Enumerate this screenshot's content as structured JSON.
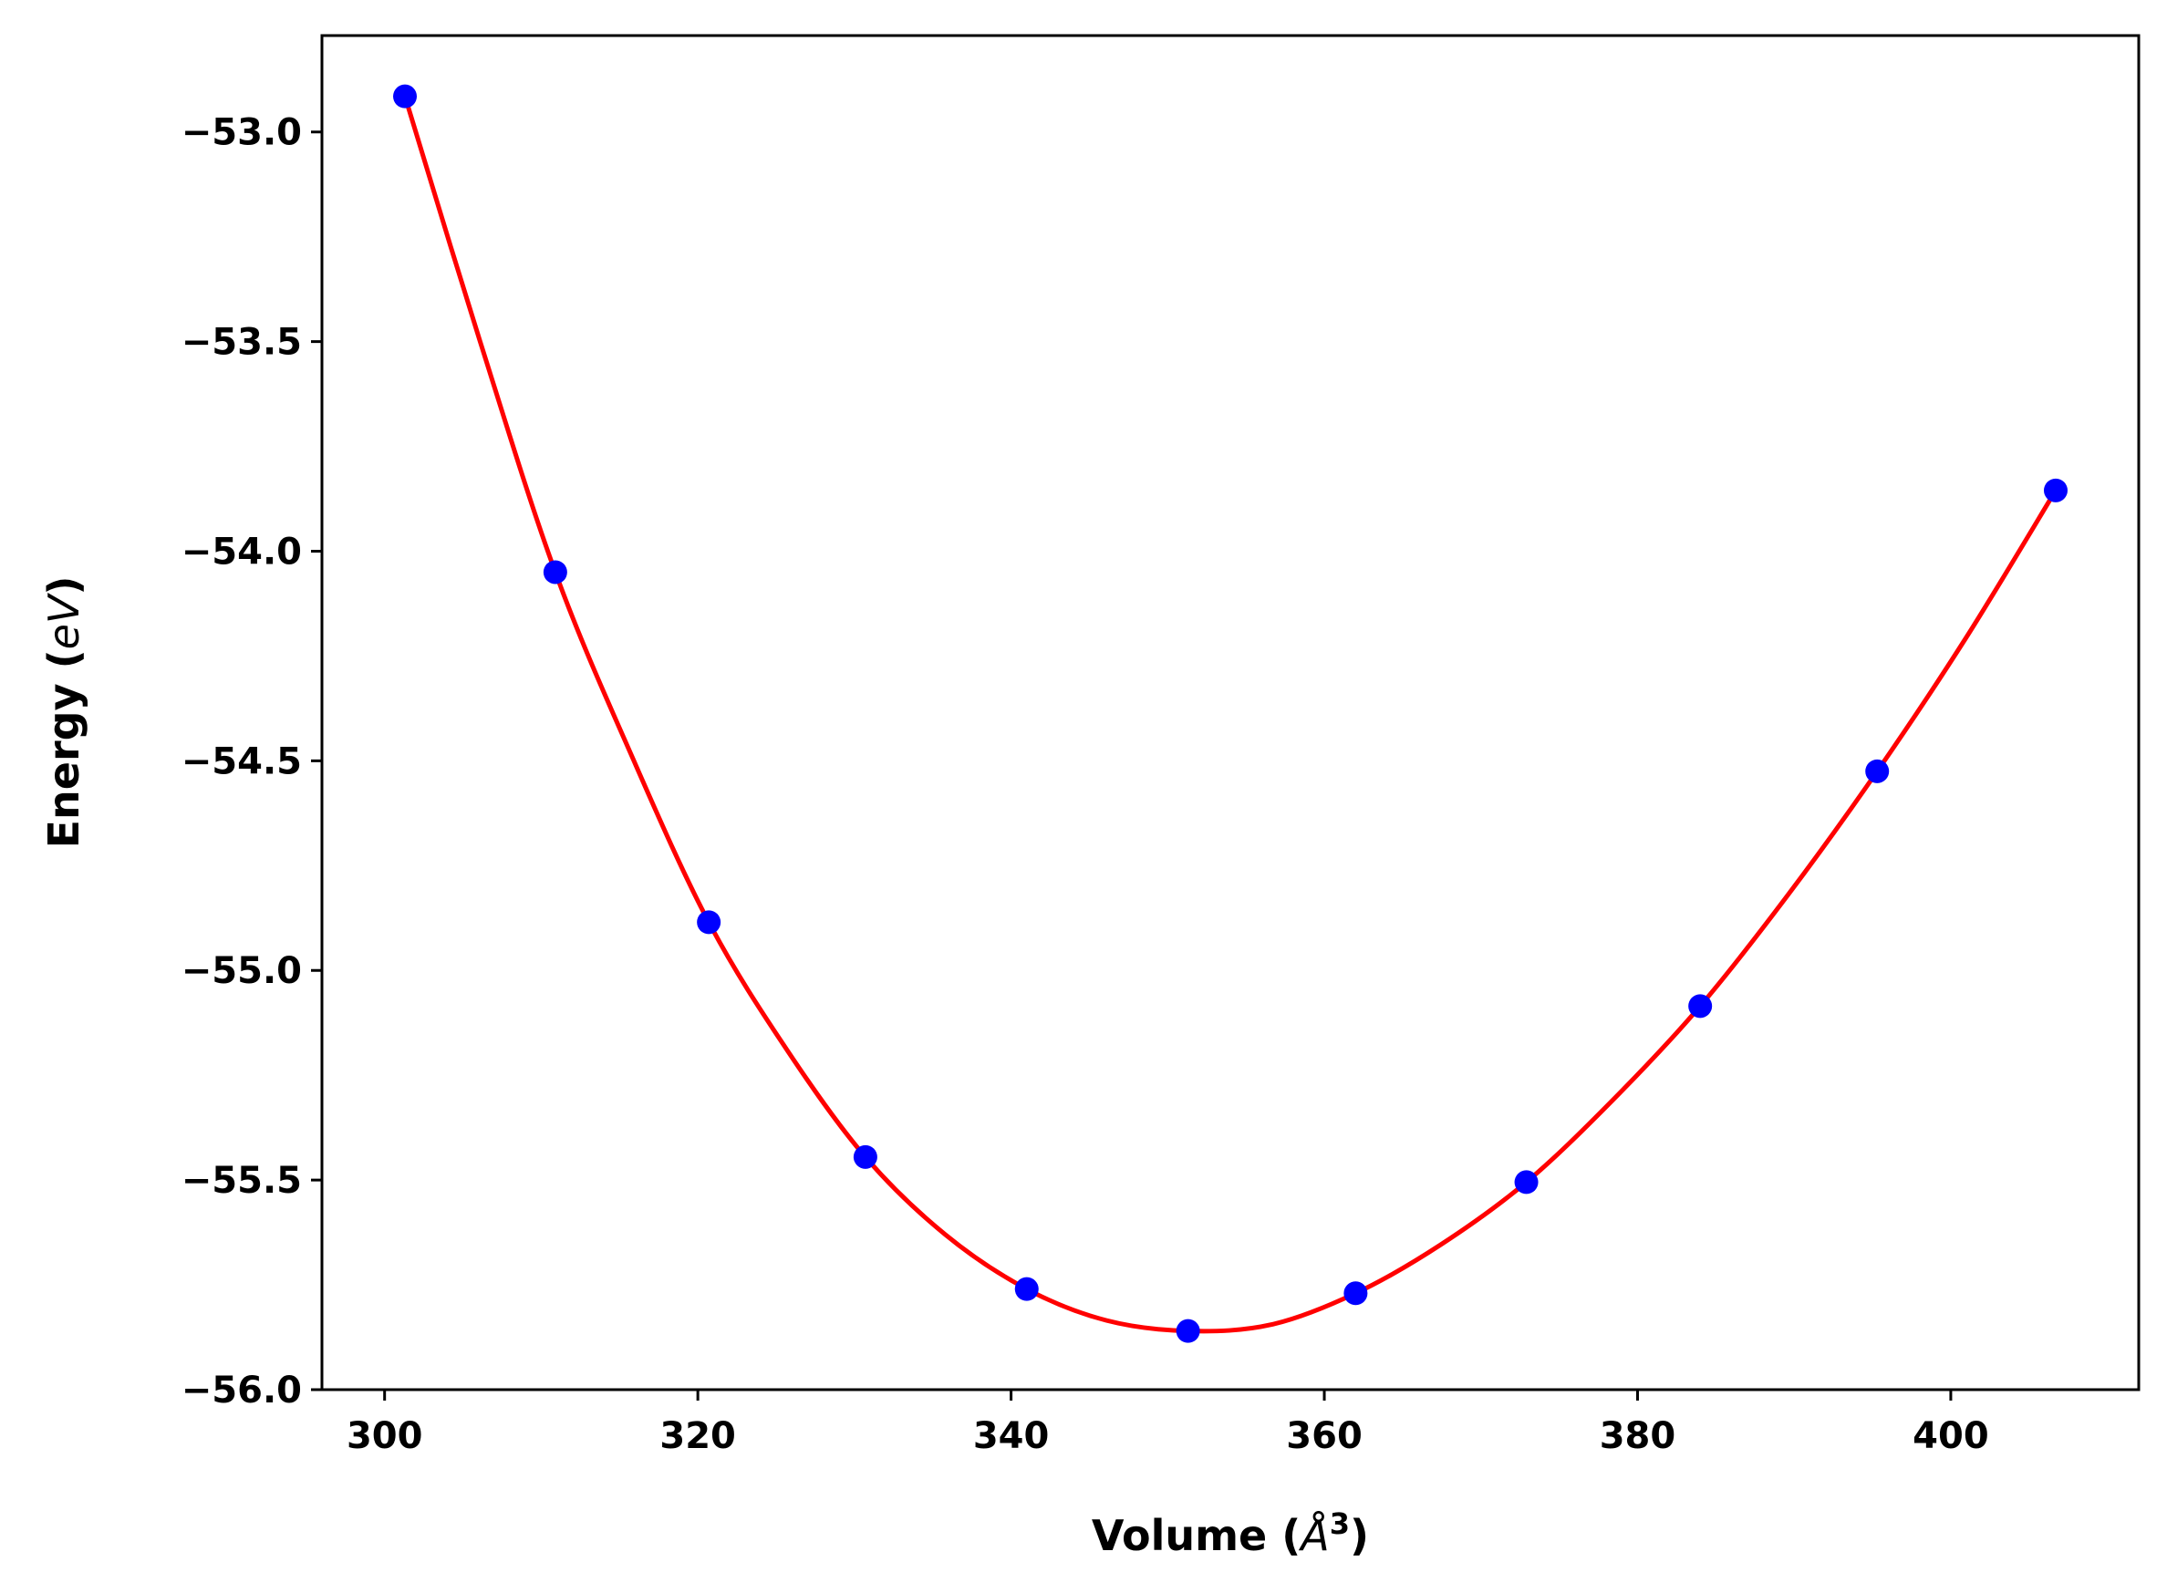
{
  "chart_data": {
    "type": "scatter",
    "title": "",
    "xlabel": {
      "text": "Volume (",
      "math": "Å",
      "sup": "3",
      "close": ")"
    },
    "ylabel": {
      "text": "Energy (",
      "math": "eV",
      "close": ")"
    },
    "xlim": [
      296,
      412
    ],
    "ylim": [
      -56.0,
      -52.77
    ],
    "xticks": [
      300,
      320,
      340,
      360,
      380,
      400
    ],
    "xtick_labels": [
      "300",
      "320",
      "340",
      "360",
      "380",
      "400"
    ],
    "yticks": [
      -56.0,
      -55.5,
      -55.0,
      -54.5,
      -54.0,
      -53.5,
      -53.0
    ],
    "ytick_labels": [
      "−56.0",
      "−55.5",
      "−55.0",
      "−54.5",
      "−54.0",
      "−53.5",
      "−53.0"
    ],
    "grid": false,
    "series": [
      {
        "kind": "points",
        "color": "#0000ff",
        "x": [
          301.3,
          310.9,
          320.7,
          330.7,
          341.0,
          351.3,
          362.0,
          372.9,
          384.0,
          395.3,
          406.7
        ],
        "y": [
          -52.915,
          -54.05,
          -54.885,
          -55.445,
          -55.76,
          -55.86,
          -55.77,
          -55.505,
          -55.085,
          -54.525,
          -53.855
        ]
      },
      {
        "kind": "fit-line",
        "color": "#ff0000",
        "x": [
          301.3,
          306.1,
          310.9,
          315.8,
          320.7,
          325.7,
          330.7,
          335.8,
          341.0,
          346.1,
          351.3,
          356.6,
          362.0,
          367.4,
          372.9,
          378.4,
          384.0,
          389.6,
          395.3,
          401.0,
          406.7
        ],
        "y": [
          -52.915,
          -53.5,
          -54.05,
          -54.49,
          -54.885,
          -55.19,
          -55.445,
          -55.63,
          -55.76,
          -55.835,
          -55.86,
          -55.845,
          -55.77,
          -55.655,
          -55.505,
          -55.31,
          -55.085,
          -54.82,
          -54.525,
          -54.205,
          -53.855
        ]
      }
    ]
  }
}
